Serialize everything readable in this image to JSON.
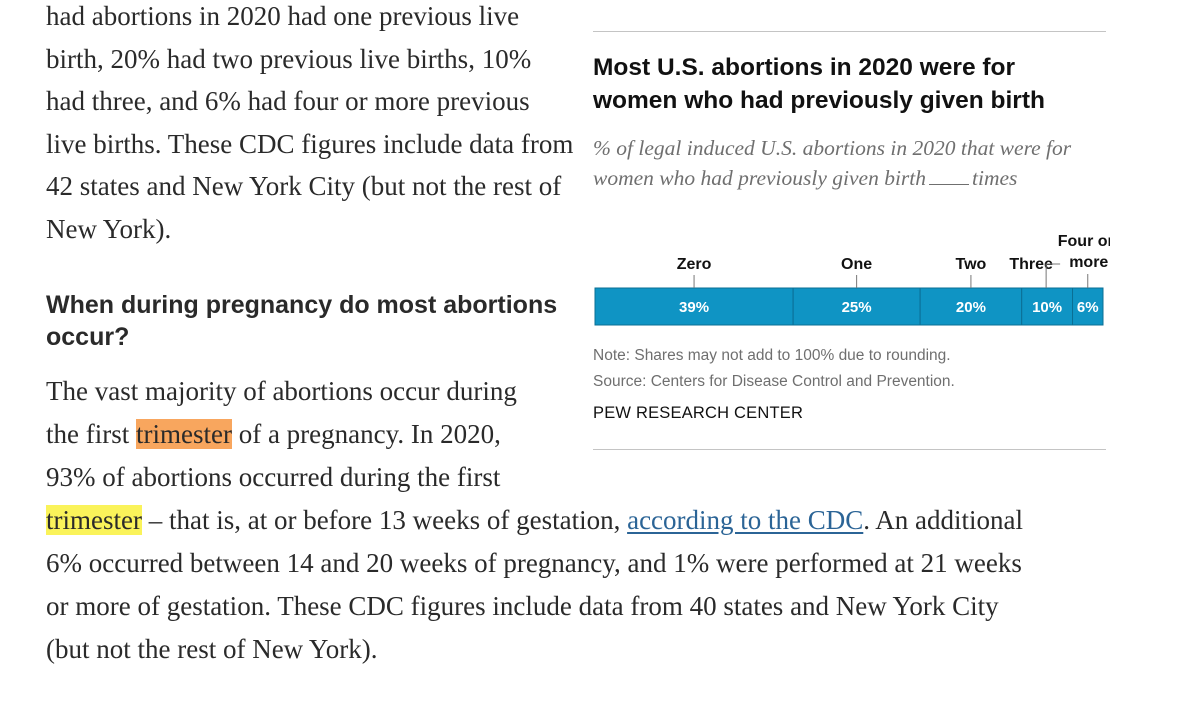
{
  "article": {
    "top_paragraph": "had abortions in 2020 had one previous live birth, 20% had two previous live births, 10% had three, and 6% had four or more previous live births. These CDC figures include data from 42 states and New York City (but not the rest of New York).",
    "section_heading": "When during pregnancy do most abortions occur?",
    "p2_line1": "The vast majority of abortions occur during",
    "p2_line2_pre": "the first ",
    "p2_hl1": "trimester",
    "p2_line2_post": " of a pregnancy. In 2020,",
    "p2_line3": "93% of abortions occurred during the first",
    "p2_hl2": "trimester",
    "p2_line4_mid": " – that is, at or before 13 weeks of gestation, ",
    "p2_link": "according to the CDC",
    "p2_line4_post": ". An additional",
    "p2_line5": "6% occurred between 14 and 20 weeks of pregnancy, and 1% were performed at 21 weeks",
    "p2_line6": "or more of gestation. These CDC figures include data from 40 states and New York City",
    "p2_line7": "(but not the rest of New York)."
  },
  "chart": {
    "title": "Most U.S. abortions in 2020 were for women who had previously given birth",
    "subtitle_pre": "% of legal induced U.S. abortions in 2020 that were for women who had previously given birth",
    "subtitle_post": "times",
    "note": "Note: Shares may not add to 100% due to rounding.",
    "source": "Source: Centers for Disease Control and Prevention.",
    "credit": "PEW RESEARCH CENTER"
  },
  "colors": {
    "bar_fill": "#0f94c4",
    "bar_stroke": "#0b6f95",
    "tick": "#777777",
    "highlight_orange": "#f8a65e",
    "highlight_yellow": "#faf35a",
    "link": "#2b6496"
  },
  "chart_data": {
    "type": "bar",
    "orientation": "horizontal-stacked",
    "categories": [
      "Zero",
      "One",
      "Two",
      "Three",
      "Four or more"
    ],
    "values": [
      39,
      25,
      20,
      10,
      6
    ],
    "value_labels": [
      "39%",
      "25%",
      "20%",
      "10%",
      "6%"
    ],
    "title": "Most U.S. abortions in 2020 were for women who had previously given birth",
    "xlabel": "",
    "ylabel": "",
    "legend": "none"
  }
}
